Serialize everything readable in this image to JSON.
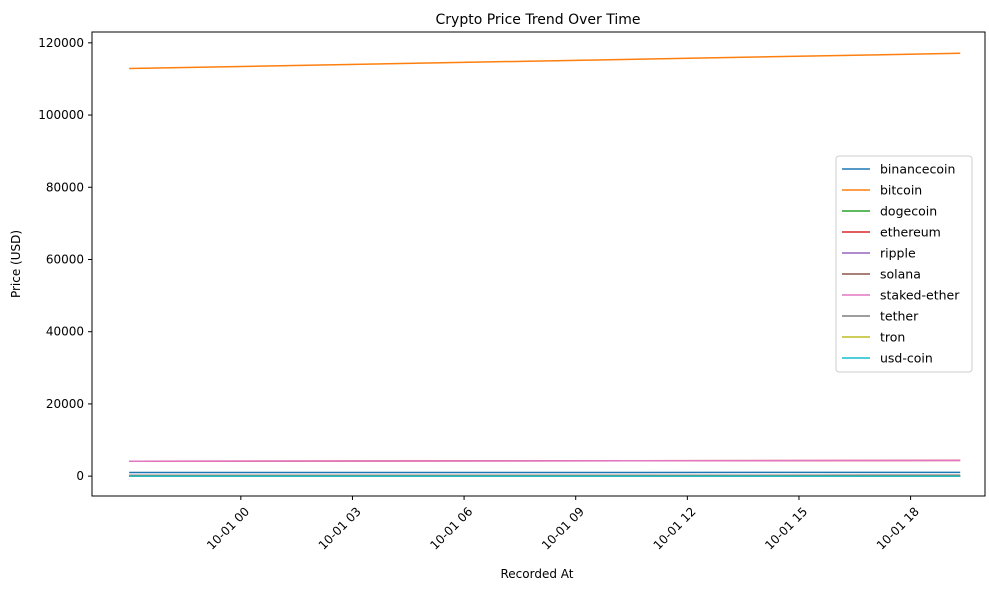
{
  "chart_data": {
    "type": "line",
    "title": "Crypto Price Trend Over Time",
    "xlabel": "Recorded At",
    "ylabel": "Price (USD)",
    "grid": false,
    "legend_position": "center-right",
    "xlim": [
      "2025-09-30T20:00",
      "2025-10-01T20:00"
    ],
    "ylim": [
      -5500,
      123000
    ],
    "x_ticks": [
      {
        "value": "2025-10-01T00:00",
        "label": "10-01 00"
      },
      {
        "value": "2025-10-01T03:00",
        "label": "10-01 03"
      },
      {
        "value": "2025-10-01T06:00",
        "label": "10-01 06"
      },
      {
        "value": "2025-10-01T09:00",
        "label": "10-01 09"
      },
      {
        "value": "2025-10-01T12:00",
        "label": "10-01 12"
      },
      {
        "value": "2025-10-01T15:00",
        "label": "10-01 15"
      },
      {
        "value": "2025-10-01T18:00",
        "label": "10-01 18"
      }
    ],
    "y_ticks": [
      {
        "value": 0,
        "label": "0"
      },
      {
        "value": 20000,
        "label": "20000"
      },
      {
        "value": 40000,
        "label": "40000"
      },
      {
        "value": 60000,
        "label": "60000"
      },
      {
        "value": 80000,
        "label": "80000"
      },
      {
        "value": 100000,
        "label": "100000"
      },
      {
        "value": 120000,
        "label": "120000"
      }
    ],
    "x": [
      "2025-09-30T21:00",
      "2025-10-01T19:20"
    ],
    "series": [
      {
        "name": "binancecoin",
        "color": "#1f77b4",
        "values": [
          1015,
          1040
        ]
      },
      {
        "name": "bitcoin",
        "color": "#ff7f0e",
        "values": [
          112900,
          117100
        ]
      },
      {
        "name": "dogecoin",
        "color": "#2ca02c",
        "values": [
          0.23,
          0.25
        ]
      },
      {
        "name": "ethereum",
        "color": "#d62728",
        "values": [
          4150,
          4350
        ]
      },
      {
        "name": "ripple",
        "color": "#9467bd",
        "values": [
          2.85,
          2.95
        ]
      },
      {
        "name": "solana",
        "color": "#8c564b",
        "values": [
          208,
          222
        ]
      },
      {
        "name": "staked-ether",
        "color": "#e377c2",
        "values": [
          4140,
          4340
        ]
      },
      {
        "name": "tether",
        "color": "#7f7f7f",
        "values": [
          1.0,
          1.0
        ]
      },
      {
        "name": "tron",
        "color": "#bcbd22",
        "values": [
          0.34,
          0.34
        ]
      },
      {
        "name": "usd-coin",
        "color": "#17becf",
        "values": [
          1.0,
          1.0
        ]
      }
    ]
  }
}
